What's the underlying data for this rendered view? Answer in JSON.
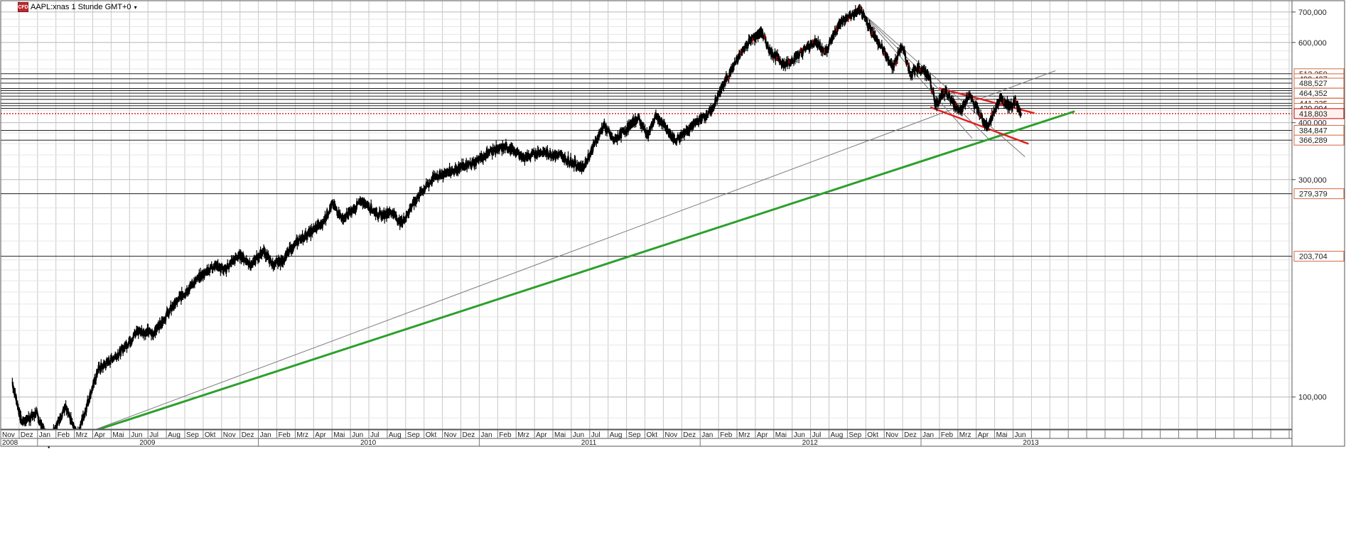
{
  "header": {
    "logo_text": "CFD",
    "title": "AAPL:xnas 1 Stunde GMT+0"
  },
  "chart_data": {
    "type": "candlestick-line",
    "title": "AAPL:xnas 1 Stunde GMT+0",
    "y_axis": {
      "side": "right",
      "scale": "log",
      "range": [
        85,
        720
      ],
      "ticks": [
        {
          "value": 100,
          "label": "100,000"
        },
        {
          "value": 300,
          "label": "300,000"
        },
        {
          "value": 400,
          "label": "400,000"
        },
        {
          "value": 600,
          "label": "600,000"
        },
        {
          "value": 700,
          "label": "700,000"
        }
      ]
    },
    "x_axis": {
      "months": [
        "Nov",
        "Dez",
        "Jan",
        "Feb",
        "Mrz",
        "Apr",
        "Mai",
        "Jun",
        "Jul",
        "Aug",
        "Sep",
        "Okt",
        "Nov",
        "Dez",
        "Jan",
        "Feb",
        "Mrz",
        "Apr",
        "Mai",
        "Jun",
        "Jul",
        "Aug",
        "Sep",
        "Okt",
        "Nov",
        "Dez",
        "Jan",
        "Feb",
        "Mrz",
        "Apr",
        "Mai",
        "Jun",
        "Jul",
        "Aug",
        "Sep",
        "Okt",
        "Nov",
        "Dez",
        "Jan",
        "Feb",
        "Mrz",
        "Apr",
        "Mai",
        "Jun",
        "Jul",
        "Aug",
        "Sep",
        "Okt",
        "Nov",
        "Dez",
        "Jan",
        "Feb",
        "Mrz",
        "Apr",
        "Mai",
        "Jun"
      ],
      "years": [
        "2008",
        "2009",
        "2010",
        "2011",
        "2012",
        "2013"
      ]
    },
    "horizontal_levels": [
      {
        "value": 512.25,
        "label": "512,250",
        "labeled": true
      },
      {
        "value": 499.407,
        "label": "499,407",
        "labeled": true
      },
      {
        "value": 488.527,
        "label": "488,527",
        "labeled": true
      },
      {
        "value": 475.5,
        "label": "",
        "labeled": false
      },
      {
        "value": 470.5,
        "label": "",
        "labeled": false
      },
      {
        "value": 464.352,
        "label": "464,352",
        "labeled": true
      },
      {
        "value": 457.5,
        "label": "",
        "labeled": false
      },
      {
        "value": 450.0,
        "label": "",
        "labeled": false
      },
      {
        "value": 441.235,
        "label": "441,235",
        "labeled": true
      },
      {
        "value": 436.0,
        "label": "",
        "labeled": false
      },
      {
        "value": 429.994,
        "label": "429,994",
        "labeled": true
      },
      {
        "value": 384.847,
        "label": "384,847",
        "labeled": true
      },
      {
        "value": 366.289,
        "label": "366,289",
        "labeled": true
      },
      {
        "value": 279.379,
        "label": "279,379",
        "labeled": true
      },
      {
        "value": 203.704,
        "label": "203,704",
        "labeled": true
      }
    ],
    "current_price": {
      "value": 418.803,
      "label": "418,803"
    },
    "price_series": {
      "name": "",
      "anchors": [
        [
          "2008-11-20",
          108
        ],
        [
          "2008-12-05",
          88
        ],
        [
          "2008-12-30",
          92
        ],
        [
          "2009-01-20",
          80
        ],
        [
          "2009-02-15",
          95
        ],
        [
          "2009-03-06",
          82
        ],
        [
          "2009-04-10",
          115
        ],
        [
          "2009-05-15",
          125
        ],
        [
          "2009-06-15",
          140
        ],
        [
          "2009-07-10",
          138
        ],
        [
          "2009-08-15",
          160
        ],
        [
          "2009-09-15",
          178
        ],
        [
          "2009-10-20",
          195
        ],
        [
          "2009-11-05",
          190
        ],
        [
          "2009-12-01",
          205
        ],
        [
          "2009-12-20",
          195
        ],
        [
          "2010-01-10",
          210
        ],
        [
          "2010-01-25",
          195
        ],
        [
          "2010-02-10",
          200
        ],
        [
          "2010-03-05",
          220
        ],
        [
          "2010-04-15",
          240
        ],
        [
          "2010-05-01",
          265
        ],
        [
          "2010-05-20",
          245
        ],
        [
          "2010-06-20",
          270
        ],
        [
          "2010-07-20",
          250
        ],
        [
          "2010-08-10",
          255
        ],
        [
          "2010-08-25",
          240
        ],
        [
          "2010-09-20",
          275
        ],
        [
          "2010-10-20",
          305
        ],
        [
          "2010-11-20",
          315
        ],
        [
          "2010-12-20",
          325
        ],
        [
          "2011-01-18",
          345
        ],
        [
          "2011-02-15",
          355
        ],
        [
          "2011-03-15",
          335
        ],
        [
          "2011-04-10",
          345
        ],
        [
          "2011-05-10",
          340
        ],
        [
          "2011-06-20",
          318
        ],
        [
          "2011-07-25",
          395
        ],
        [
          "2011-08-10",
          365
        ],
        [
          "2011-09-20",
          410
        ],
        [
          "2011-10-05",
          375
        ],
        [
          "2011-10-20",
          415
        ],
        [
          "2011-11-20",
          365
        ],
        [
          "2011-12-20",
          395
        ],
        [
          "2012-01-20",
          425
        ],
        [
          "2012-02-10",
          490
        ],
        [
          "2012-03-15",
          590
        ],
        [
          "2012-04-10",
          635
        ],
        [
          "2012-04-25",
          575
        ],
        [
          "2012-05-20",
          535
        ],
        [
          "2012-06-15",
          570
        ],
        [
          "2012-07-10",
          605
        ],
        [
          "2012-07-25",
          570
        ],
        [
          "2012-08-20",
          665
        ],
        [
          "2012-09-21",
          705
        ],
        [
          "2012-10-10",
          640
        ],
        [
          "2012-11-15",
          530
        ],
        [
          "2012-11-30",
          590
        ],
        [
          "2012-12-15",
          510
        ],
        [
          "2012-12-28",
          530
        ],
        [
          "2013-01-15",
          505
        ],
        [
          "2013-01-25",
          440
        ],
        [
          "2013-02-10",
          465
        ],
        [
          "2013-03-05",
          425
        ],
        [
          "2013-03-20",
          460
        ],
        [
          "2013-04-19",
          390
        ],
        [
          "2013-05-10",
          455
        ],
        [
          "2013-05-25",
          435
        ],
        [
          "2013-06-05",
          445
        ],
        [
          "2013-06-14",
          418
        ]
      ]
    },
    "trendlines": [
      {
        "color": "#2ca02c",
        "width": 3,
        "points": [
          [
            "2009-03-06",
            82
          ],
          [
            "2013-09-10",
            423
          ]
        ]
      },
      {
        "color": "#7a7a7a",
        "width": 1,
        "points": [
          [
            "2009-03-06",
            82
          ],
          [
            "2013-08-10",
            520
          ]
        ]
      },
      {
        "color": "#7a7a7a",
        "width": 1,
        "points": [
          [
            "2012-09-21",
            705
          ],
          [
            "2013-03-25",
            370
          ]
        ]
      },
      {
        "color": "#7a7a7a",
        "width": 1,
        "points": [
          [
            "2012-09-21",
            705
          ],
          [
            "2013-04-20",
            370
          ]
        ]
      },
      {
        "color": "#7a7a7a",
        "width": 1,
        "points": [
          [
            "2012-09-21",
            705
          ],
          [
            "2013-06-20",
            337
          ]
        ]
      },
      {
        "color": "#e02020",
        "width": 2.5,
        "points": [
          [
            "2013-02-01",
            476
          ],
          [
            "2013-07-05",
            420
          ]
        ]
      },
      {
        "color": "#e02020",
        "width": 2.5,
        "points": [
          [
            "2013-01-18",
            432
          ],
          [
            "2013-06-25",
            360
          ]
        ]
      }
    ],
    "grid": true
  }
}
